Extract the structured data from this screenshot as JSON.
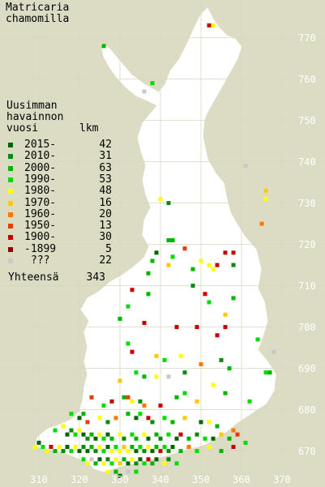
{
  "title": {
    "line1": "Matricaria",
    "line2": "chamomilla"
  },
  "legend": {
    "heading": [
      "Uusimman",
      "havainnon",
      "vuosi"
    ],
    "count_header": "lkm",
    "rows": [
      {
        "label": "2015-",
        "count": "42",
        "color": "#006400"
      },
      {
        "label": "2010-",
        "count": "31",
        "color": "#0a8a0a"
      },
      {
        "label": "2000-",
        "count": "63",
        "color": "#00b400"
      },
      {
        "label": "1990-",
        "count": "53",
        "color": "#00dc00"
      },
      {
        "label": "1980-",
        "count": "48",
        "color": "#ffff00"
      },
      {
        "label": "1970-",
        "count": "16",
        "color": "#ffc800"
      },
      {
        "label": "1960-",
        "count": "20",
        "color": "#ff7800"
      },
      {
        "label": "1950-",
        "count": "13",
        "color": "#e63c00"
      },
      {
        "label": "1900-",
        "count": "30",
        "color": "#c80000"
      },
      {
        "label": "-1899",
        "count": "5",
        "color": "#8c0000"
      },
      {
        "label": "???",
        "count": "22",
        "color": "#c8c8c8"
      }
    ],
    "total_label": "Yhteensä",
    "total_count": "343"
  },
  "axes": {
    "x_ticks": [
      "310",
      "320",
      "330",
      "340",
      "350",
      "360",
      "370"
    ],
    "y_ticks": [
      "770",
      "760",
      "750",
      "740",
      "730",
      "720",
      "710",
      "700",
      "690",
      "680",
      "670"
    ]
  },
  "map_data": {
    "grid_unit": "10 km",
    "x_range": [
      305,
      375
    ],
    "y_range": [
      664,
      776
    ],
    "observations": [
      {
        "x": 352,
        "y": 773,
        "c": 8
      },
      {
        "x": 353,
        "y": 773,
        "c": 4
      },
      {
        "x": 326,
        "y": 768,
        "c": 2
      },
      {
        "x": 338,
        "y": 759,
        "c": 3
      },
      {
        "x": 336,
        "y": 757,
        "c": 10
      },
      {
        "x": 361,
        "y": 739,
        "c": 10
      },
      {
        "x": 366,
        "y": 733,
        "c": 5
      },
      {
        "x": 366,
        "y": 731,
        "c": 4
      },
      {
        "x": 342,
        "y": 730,
        "c": 1
      },
      {
        "x": 340,
        "y": 731,
        "c": 4
      },
      {
        "x": 365,
        "y": 725,
        "c": 6
      },
      {
        "x": 342,
        "y": 721,
        "c": 2
      },
      {
        "x": 343,
        "y": 721,
        "c": 2
      },
      {
        "x": 346,
        "y": 719,
        "c": 7
      },
      {
        "x": 343,
        "y": 717,
        "c": 3
      },
      {
        "x": 339,
        "y": 718,
        "c": 0
      },
      {
        "x": 338,
        "y": 716,
        "c": 2
      },
      {
        "x": 342,
        "y": 715,
        "c": 5
      },
      {
        "x": 350,
        "y": 716,
        "c": 4
      },
      {
        "x": 352,
        "y": 715,
        "c": 4
      },
      {
        "x": 353,
        "y": 714,
        "c": 4
      },
      {
        "x": 354,
        "y": 715,
        "c": 8
      },
      {
        "x": 356,
        "y": 718,
        "c": 8
      },
      {
        "x": 358,
        "y": 718,
        "c": 8
      },
      {
        "x": 358,
        "y": 715,
        "c": 1
      },
      {
        "x": 337,
        "y": 713,
        "c": 2
      },
      {
        "x": 348,
        "y": 714,
        "c": 2
      },
      {
        "x": 333,
        "y": 709,
        "c": 8
      },
      {
        "x": 337,
        "y": 708,
        "c": 2
      },
      {
        "x": 348,
        "y": 710,
        "c": 1
      },
      {
        "x": 351,
        "y": 708,
        "c": 8
      },
      {
        "x": 352,
        "y": 706,
        "c": 3
      },
      {
        "x": 358,
        "y": 707,
        "c": 2
      },
      {
        "x": 356,
        "y": 703,
        "c": 5
      },
      {
        "x": 332,
        "y": 705,
        "c": 3
      },
      {
        "x": 330,
        "y": 702,
        "c": 2
      },
      {
        "x": 336,
        "y": 701,
        "c": 8
      },
      {
        "x": 344,
        "y": 700,
        "c": 8
      },
      {
        "x": 349,
        "y": 700,
        "c": 8
      },
      {
        "x": 354,
        "y": 698,
        "c": 8
      },
      {
        "x": 356,
        "y": 700,
        "c": 8
      },
      {
        "x": 364,
        "y": 697,
        "c": 3
      },
      {
        "x": 332,
        "y": 696,
        "c": 3
      },
      {
        "x": 333,
        "y": 694,
        "c": 8
      },
      {
        "x": 339,
        "y": 693,
        "c": 5
      },
      {
        "x": 341,
        "y": 692,
        "c": 3
      },
      {
        "x": 345,
        "y": 693,
        "c": 4
      },
      {
        "x": 350,
        "y": 691,
        "c": 6
      },
      {
        "x": 355,
        "y": 692,
        "c": 1
      },
      {
        "x": 357,
        "y": 690,
        "c": 2
      },
      {
        "x": 368,
        "y": 694,
        "c": 10
      },
      {
        "x": 366,
        "y": 689,
        "c": 3
      },
      {
        "x": 367,
        "y": 689,
        "c": 2
      },
      {
        "x": 330,
        "y": 687,
        "c": 5
      },
      {
        "x": 334,
        "y": 689,
        "c": 3
      },
      {
        "x": 336,
        "y": 688,
        "c": 2
      },
      {
        "x": 339,
        "y": 688,
        "c": 4
      },
      {
        "x": 342,
        "y": 688,
        "c": 10
      },
      {
        "x": 346,
        "y": 689,
        "c": 1
      },
      {
        "x": 353,
        "y": 686,
        "c": 4
      },
      {
        "x": 362,
        "y": 682,
        "c": 3
      },
      {
        "x": 323,
        "y": 683,
        "c": 7
      },
      {
        "x": 326,
        "y": 681,
        "c": 3
      },
      {
        "x": 328,
        "y": 682,
        "c": 8
      },
      {
        "x": 331,
        "y": 683,
        "c": 2
      },
      {
        "x": 332,
        "y": 683,
        "c": 7
      },
      {
        "x": 333,
        "y": 682,
        "c": 4
      },
      {
        "x": 335,
        "y": 682,
        "c": 1
      },
      {
        "x": 336,
        "y": 681,
        "c": 6
      },
      {
        "x": 340,
        "y": 681,
        "c": 8
      },
      {
        "x": 344,
        "y": 683,
        "c": 2
      },
      {
        "x": 346,
        "y": 684,
        "c": 3
      },
      {
        "x": 349,
        "y": 682,
        "c": 5
      },
      {
        "x": 356,
        "y": 684,
        "c": 2
      },
      {
        "x": 318,
        "y": 679,
        "c": 3
      },
      {
        "x": 320,
        "y": 678,
        "c": 0
      },
      {
        "x": 321,
        "y": 679,
        "c": 2
      },
      {
        "x": 322,
        "y": 677,
        "c": 7
      },
      {
        "x": 325,
        "y": 678,
        "c": 4
      },
      {
        "x": 327,
        "y": 677,
        "c": 1
      },
      {
        "x": 329,
        "y": 678,
        "c": 6
      },
      {
        "x": 332,
        "y": 679,
        "c": 2
      },
      {
        "x": 334,
        "y": 678,
        "c": 0
      },
      {
        "x": 335,
        "y": 679,
        "c": 3
      },
      {
        "x": 337,
        "y": 678,
        "c": 8
      },
      {
        "x": 338,
        "y": 677,
        "c": 1
      },
      {
        "x": 341,
        "y": 678,
        "c": 3
      },
      {
        "x": 343,
        "y": 677,
        "c": 2
      },
      {
        "x": 346,
        "y": 678,
        "c": 5
      },
      {
        "x": 350,
        "y": 677,
        "c": 0
      },
      {
        "x": 352,
        "y": 677,
        "c": 4
      },
      {
        "x": 354,
        "y": 676,
        "c": 2
      },
      {
        "x": 358,
        "y": 675,
        "c": 6
      },
      {
        "x": 314,
        "y": 675,
        "c": 3
      },
      {
        "x": 316,
        "y": 676,
        "c": 4
      },
      {
        "x": 317,
        "y": 674,
        "c": 0
      },
      {
        "x": 318,
        "y": 675,
        "c": 1
      },
      {
        "x": 319,
        "y": 674,
        "c": 3
      },
      {
        "x": 320,
        "y": 675,
        "c": 4
      },
      {
        "x": 321,
        "y": 674,
        "c": 0
      },
      {
        "x": 322,
        "y": 673,
        "c": 1
      },
      {
        "x": 323,
        "y": 674,
        "c": 2
      },
      {
        "x": 324,
        "y": 673,
        "c": 0
      },
      {
        "x": 325,
        "y": 674,
        "c": 4
      },
      {
        "x": 326,
        "y": 673,
        "c": 3
      },
      {
        "x": 327,
        "y": 674,
        "c": 0
      },
      {
        "x": 328,
        "y": 673,
        "c": 2
      },
      {
        "x": 330,
        "y": 674,
        "c": 4
      },
      {
        "x": 331,
        "y": 673,
        "c": 1
      },
      {
        "x": 333,
        "y": 674,
        "c": 3
      },
      {
        "x": 334,
        "y": 673,
        "c": 2
      },
      {
        "x": 336,
        "y": 674,
        "c": 4
      },
      {
        "x": 337,
        "y": 673,
        "c": 0
      },
      {
        "x": 339,
        "y": 674,
        "c": 2
      },
      {
        "x": 340,
        "y": 673,
        "c": 1
      },
      {
        "x": 342,
        "y": 674,
        "c": 3
      },
      {
        "x": 344,
        "y": 673,
        "c": 0
      },
      {
        "x": 345,
        "y": 674,
        "c": 8
      },
      {
        "x": 347,
        "y": 673,
        "c": 2
      },
      {
        "x": 349,
        "y": 674,
        "c": 1
      },
      {
        "x": 351,
        "y": 673,
        "c": 3
      },
      {
        "x": 353,
        "y": 673,
        "c": 0
      },
      {
        "x": 355,
        "y": 674,
        "c": 5
      },
      {
        "x": 357,
        "y": 673,
        "c": 2
      },
      {
        "x": 359,
        "y": 674,
        "c": 7
      },
      {
        "x": 309,
        "y": 671,
        "c": 4
      },
      {
        "x": 310,
        "y": 672,
        "c": 0
      },
      {
        "x": 311,
        "y": 671,
        "c": 3
      },
      {
        "x": 312,
        "y": 670,
        "c": 4
      },
      {
        "x": 313,
        "y": 671,
        "c": 8
      },
      {
        "x": 314,
        "y": 670,
        "c": 2
      },
      {
        "x": 315,
        "y": 671,
        "c": 4
      },
      {
        "x": 316,
        "y": 670,
        "c": 1
      },
      {
        "x": 317,
        "y": 671,
        "c": 0
      },
      {
        "x": 318,
        "y": 670,
        "c": 3
      },
      {
        "x": 319,
        "y": 671,
        "c": 4
      },
      {
        "x": 320,
        "y": 670,
        "c": 0
      },
      {
        "x": 321,
        "y": 671,
        "c": 1
      },
      {
        "x": 322,
        "y": 670,
        "c": 0
      },
      {
        "x": 323,
        "y": 671,
        "c": 2
      },
      {
        "x": 324,
        "y": 670,
        "c": 1
      },
      {
        "x": 325,
        "y": 671,
        "c": 4
      },
      {
        "x": 326,
        "y": 670,
        "c": 3
      },
      {
        "x": 327,
        "y": 671,
        "c": 0
      },
      {
        "x": 328,
        "y": 670,
        "c": 4
      },
      {
        "x": 329,
        "y": 671,
        "c": 3
      },
      {
        "x": 330,
        "y": 670,
        "c": 4
      },
      {
        "x": 331,
        "y": 671,
        "c": 5
      },
      {
        "x": 332,
        "y": 670,
        "c": 4
      },
      {
        "x": 333,
        "y": 671,
        "c": 2
      },
      {
        "x": 334,
        "y": 670,
        "c": 0
      },
      {
        "x": 335,
        "y": 671,
        "c": 3
      },
      {
        "x": 336,
        "y": 670,
        "c": 1
      },
      {
        "x": 337,
        "y": 671,
        "c": 4
      },
      {
        "x": 338,
        "y": 670,
        "c": 0
      },
      {
        "x": 339,
        "y": 671,
        "c": 2
      },
      {
        "x": 340,
        "y": 670,
        "c": 8
      },
      {
        "x": 341,
        "y": 671,
        "c": 3
      },
      {
        "x": 342,
        "y": 670,
        "c": 1
      },
      {
        "x": 343,
        "y": 671,
        "c": 0
      },
      {
        "x": 345,
        "y": 670,
        "c": 2
      },
      {
        "x": 347,
        "y": 671,
        "c": 6
      },
      {
        "x": 349,
        "y": 670,
        "c": 3
      },
      {
        "x": 352,
        "y": 671,
        "c": 4
      },
      {
        "x": 355,
        "y": 670,
        "c": 2
      },
      {
        "x": 358,
        "y": 671,
        "c": 8
      },
      {
        "x": 361,
        "y": 672,
        "c": 3
      },
      {
        "x": 321,
        "y": 668,
        "c": 3
      },
      {
        "x": 322,
        "y": 667,
        "c": 4
      },
      {
        "x": 323,
        "y": 668,
        "c": 10
      },
      {
        "x": 324,
        "y": 667,
        "c": 2
      },
      {
        "x": 325,
        "y": 668,
        "c": 0
      },
      {
        "x": 326,
        "y": 667,
        "c": 4
      },
      {
        "x": 327,
        "y": 668,
        "c": 1
      },
      {
        "x": 328,
        "y": 667,
        "c": 3
      },
      {
        "x": 329,
        "y": 668,
        "c": 4
      },
      {
        "x": 330,
        "y": 667,
        "c": 5
      },
      {
        "x": 331,
        "y": 668,
        "c": 2
      },
      {
        "x": 332,
        "y": 667,
        "c": 0
      },
      {
        "x": 333,
        "y": 668,
        "c": 4
      },
      {
        "x": 334,
        "y": 667,
        "c": 1
      },
      {
        "x": 335,
        "y": 668,
        "c": 0
      },
      {
        "x": 336,
        "y": 667,
        "c": 3
      },
      {
        "x": 337,
        "y": 668,
        "c": 8
      },
      {
        "x": 338,
        "y": 667,
        "c": 2
      },
      {
        "x": 339,
        "y": 668,
        "c": 0
      },
      {
        "x": 341,
        "y": 667,
        "c": 4
      },
      {
        "x": 342,
        "y": 668,
        "c": 1
      },
      {
        "x": 344,
        "y": 667,
        "c": 3
      },
      {
        "x": 327,
        "y": 665,
        "c": 4
      },
      {
        "x": 329,
        "y": 665,
        "c": 2
      },
      {
        "x": 330,
        "y": 664,
        "c": 0
      },
      {
        "x": 332,
        "y": 665,
        "c": 10
      },
      {
        "x": 334,
        "y": 665,
        "c": 3
      }
    ]
  }
}
